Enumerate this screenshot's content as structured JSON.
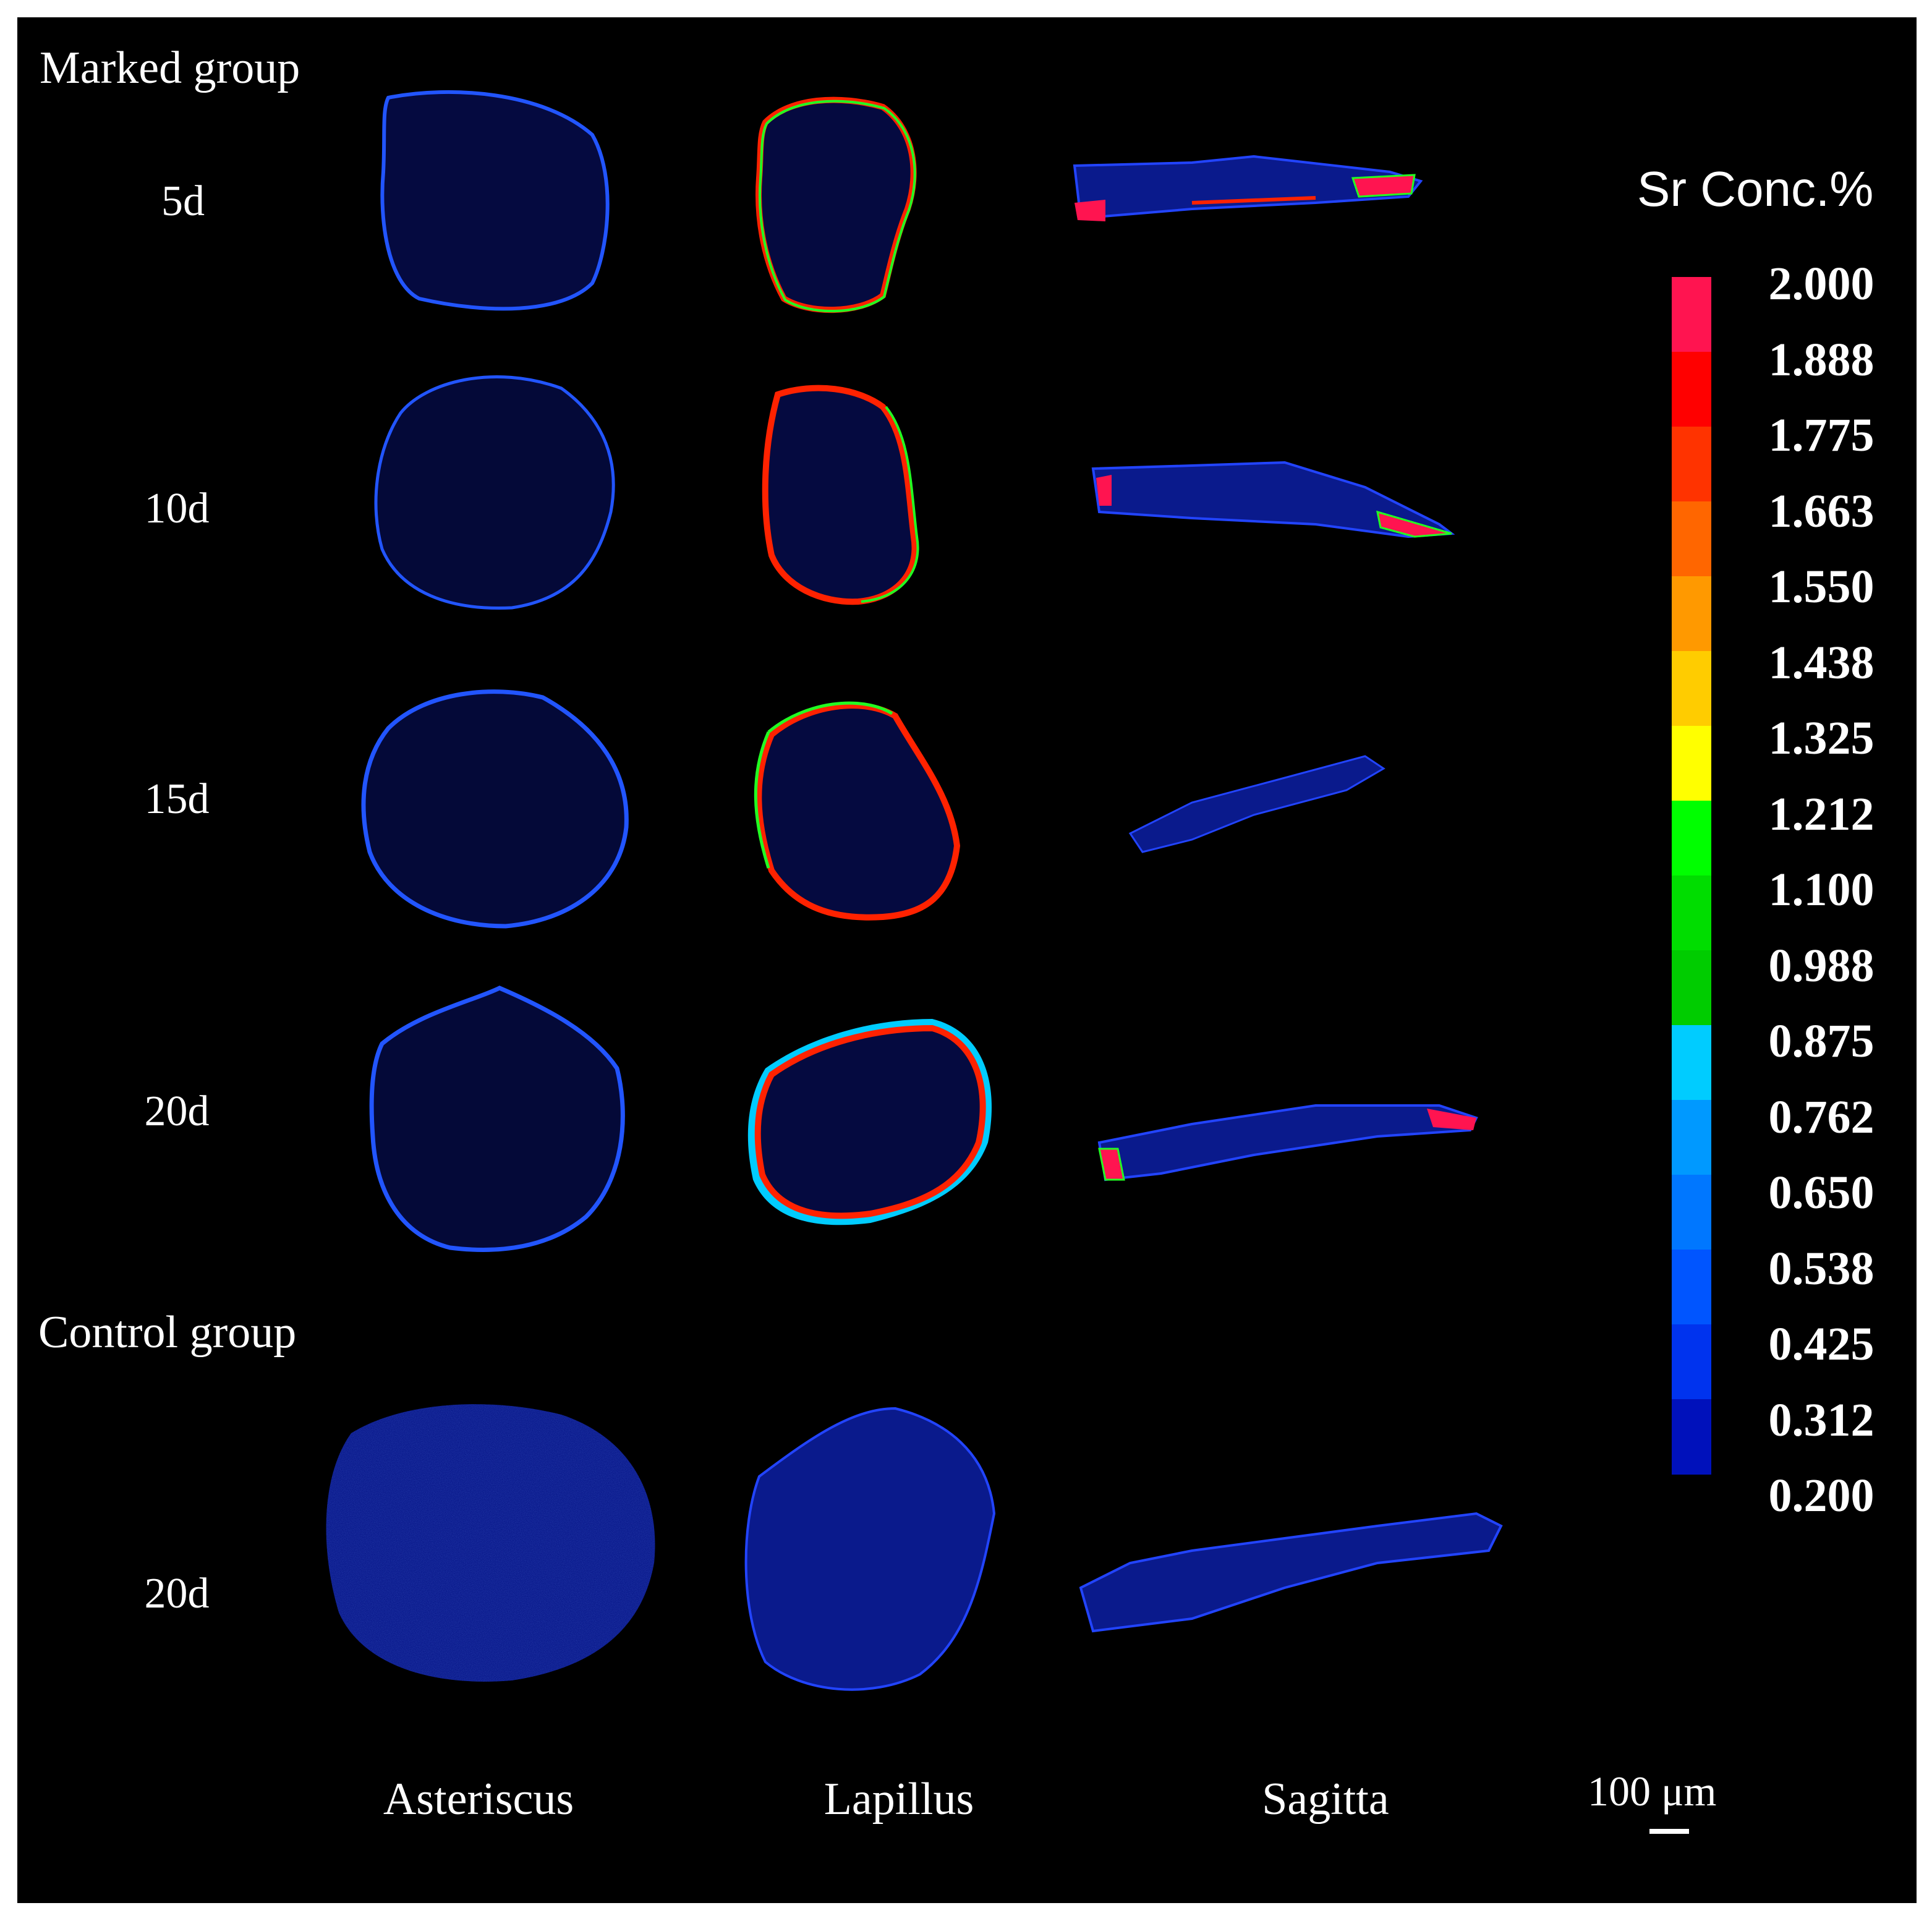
{
  "groups": {
    "marked": "Marked group",
    "control": "Control group"
  },
  "rows": [
    "5d",
    "10d",
    "15d",
    "20d",
    "20d"
  ],
  "columns": [
    "Asteriscus",
    "Lapillus",
    "Sagitta"
  ],
  "colorbar": {
    "title": "Sr Conc.%",
    "ticks": [
      "2.000",
      "1.888",
      "1.775",
      "1.663",
      "1.550",
      "1.438",
      "1.325",
      "1.212",
      "1.100",
      "0.988",
      "0.875",
      "0.762",
      "0.650",
      "0.538",
      "0.425",
      "0.312",
      "0.200"
    ],
    "colors": [
      "#ff1450",
      "#ff0000",
      "#ff3300",
      "#ff6600",
      "#ff9900",
      "#ffcc00",
      "#ffff00",
      "#00ff00",
      "#00dd00",
      "#00cc00",
      "#00ccff",
      "#0099ff",
      "#0077ff",
      "#0055ff",
      "#0033ee",
      "#0011bb"
    ]
  },
  "scalebar": {
    "label": "100 μm"
  },
  "colors": {
    "background": "#000000",
    "baseline": "#0a1a8c",
    "rim_low": "#2244ff"
  }
}
